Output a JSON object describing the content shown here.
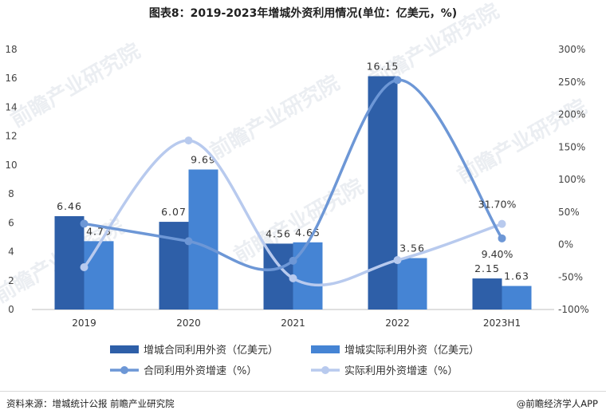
{
  "header": {
    "title": "图表8：2019-2023年增城外资利用情况(单位：亿美元，%)"
  },
  "footer": {
    "source": "资料来源：增城统计公报 前瞻产业研究院",
    "brand": "@前瞻经济学人APP"
  },
  "watermark": {
    "text": "前瞻产业研究院"
  },
  "colors": {
    "contract_bar": "#2e5fa8",
    "actual_bar": "#4584d4",
    "contract_line": "#6d97d6",
    "actual_line": "#b8caee"
  },
  "chart_data": {
    "type": "bar",
    "categories": [
      "2019",
      "2020",
      "2021",
      "2022",
      "2023H1"
    ],
    "y_left": {
      "ticks": [
        "0",
        "2",
        "4",
        "6",
        "8",
        "10",
        "12",
        "14",
        "16",
        "18"
      ],
      "ylim": [
        0,
        18
      ]
    },
    "y_right": {
      "ticks": [
        "-100%",
        "-50%",
        "0%",
        "50%",
        "100%",
        "150%",
        "200%",
        "250%",
        "300%"
      ],
      "ylim": [
        -100,
        300
      ]
    },
    "bar_series": [
      {
        "name": "增城合同利用外资（亿美元）",
        "values": [
          6.46,
          6.07,
          4.56,
          16.15,
          2.15
        ],
        "labels": [
          "6.46",
          "6.07",
          "4.56",
          "16.15",
          "2.15"
        ]
      },
      {
        "name": "增城实际利用外资（亿美元）",
        "values": [
          4.73,
          9.69,
          4.65,
          3.56,
          1.63
        ],
        "labels": [
          "4.73",
          "9.69",
          "4.65",
          "3.56",
          "1.63"
        ]
      }
    ],
    "line_series": [
      {
        "name": "合同利用外资增速（%）",
        "values": [
          32,
          5,
          -25,
          253,
          9.4
        ],
        "point_labels": [
          "",
          "",
          "",
          "",
          "9.40%"
        ]
      },
      {
        "name": "实际利用外资增速（%）",
        "values": [
          -35,
          160,
          -52,
          -24,
          31.7
        ],
        "point_labels": [
          "",
          "",
          "",
          "",
          "31.70%"
        ]
      }
    ],
    "legend_position": "bottom",
    "grid": false
  }
}
